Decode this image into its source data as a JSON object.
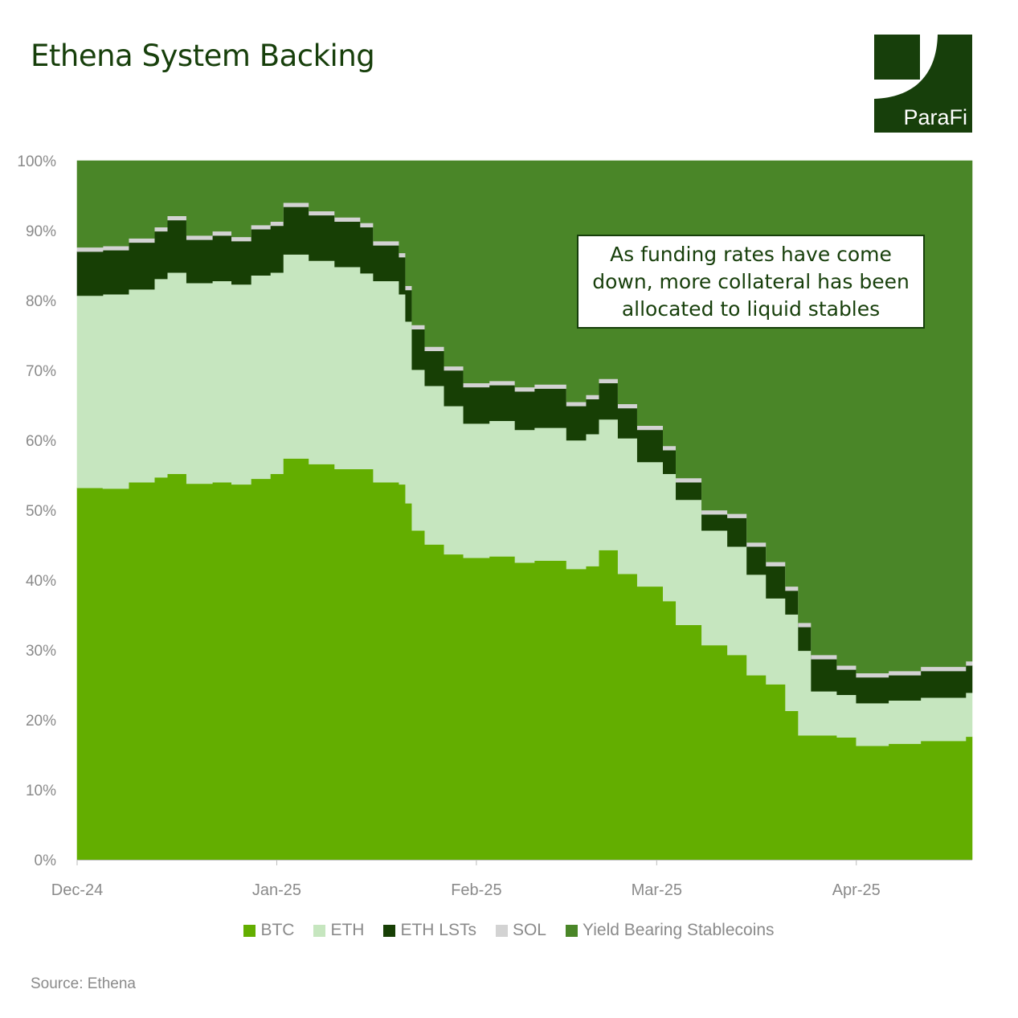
{
  "title": "Ethena System Backing",
  "source": "Source: Ethena",
  "logo_text": "ParaFi",
  "annotation": "As funding rates have come down, more collateral has been allocated to liquid stables",
  "colors": {
    "BTC": "#63ae00",
    "ETH": "#c6e6bf",
    "ETH LSTs": "#173f05",
    "SOL": "#d3d3d3",
    "Yield Bearing Stablecoins": "#4a8628",
    "title": "#173f0b"
  },
  "chart_data": {
    "type": "area",
    "stacked": true,
    "percent": true,
    "step": true,
    "title": "Ethena System Backing",
    "xlabel": "",
    "ylabel": "",
    "ylim": [
      0,
      100
    ],
    "xlim": [
      "2024-12-01",
      "2025-04-19"
    ],
    "y_ticks": [
      "0%",
      "10%",
      "20%",
      "30%",
      "40%",
      "50%",
      "60%",
      "70%",
      "80%",
      "90%",
      "100%"
    ],
    "x_ticks": [
      {
        "date": "2024-12-01",
        "label": "Dec-24"
      },
      {
        "date": "2025-01-01",
        "label": "Jan-25"
      },
      {
        "date": "2025-02-01",
        "label": "Feb-25"
      },
      {
        "date": "2025-03-01",
        "label": "Mar-25"
      },
      {
        "date": "2025-04-01",
        "label": "Apr-25"
      }
    ],
    "grid": false,
    "legend_position": "bottom",
    "x": [
      "2024-12-01",
      "2024-12-05",
      "2024-12-09",
      "2024-12-13",
      "2024-12-15",
      "2024-12-18",
      "2024-12-22",
      "2024-12-25",
      "2024-12-28",
      "2024-12-31",
      "2025-01-02",
      "2025-01-06",
      "2025-01-10",
      "2025-01-14",
      "2025-01-16",
      "2025-01-20",
      "2025-01-21",
      "2025-01-22",
      "2025-01-24",
      "2025-01-27",
      "2025-01-30",
      "2025-02-03",
      "2025-02-07",
      "2025-02-10",
      "2025-02-15",
      "2025-02-18",
      "2025-02-20",
      "2025-02-23",
      "2025-02-26",
      "2025-03-02",
      "2025-03-04",
      "2025-03-08",
      "2025-03-12",
      "2025-03-15",
      "2025-03-18",
      "2025-03-21",
      "2025-03-23",
      "2025-03-25",
      "2025-03-29",
      "2025-04-01",
      "2025-04-06",
      "2025-04-11",
      "2025-04-18"
    ],
    "series": [
      {
        "name": "BTC",
        "values": [
          53.2,
          53.1,
          54.0,
          54.7,
          55.2,
          53.8,
          54.0,
          53.7,
          54.5,
          55.2,
          57.4,
          56.6,
          55.9,
          55.9,
          54.0,
          53.7,
          51.0,
          47.1,
          45.1,
          43.7,
          43.2,
          43.4,
          42.5,
          42.8,
          41.6,
          42.0,
          44.3,
          40.9,
          39.1,
          37.0,
          33.6,
          30.7,
          29.3,
          26.4,
          25.1,
          21.3,
          17.8,
          17.8,
          17.5,
          16.3,
          16.6,
          17.0,
          17.6
        ]
      },
      {
        "name": "ETH",
        "values": [
          27.5,
          27.8,
          27.6,
          28.4,
          28.8,
          28.7,
          28.8,
          28.6,
          29.1,
          28.8,
          29.2,
          29.1,
          28.9,
          28.0,
          28.8,
          27.2,
          26.0,
          23.0,
          22.7,
          21.2,
          19.2,
          19.4,
          19.0,
          19.0,
          18.4,
          18.9,
          18.7,
          19.4,
          17.8,
          18.2,
          17.9,
          16.4,
          15.5,
          14.4,
          12.3,
          13.8,
          12.1,
          6.3,
          6.1,
          6.1,
          6.2,
          6.2,
          6.3
        ]
      },
      {
        "name": "ETH LSTs",
        "values": [
          6.3,
          6.3,
          6.7,
          6.8,
          7.5,
          6.2,
          6.5,
          6.2,
          6.6,
          6.7,
          6.8,
          6.5,
          6.5,
          6.6,
          5.1,
          5.3,
          4.5,
          5.8,
          5.0,
          5.1,
          5.2,
          5.1,
          5.5,
          5.6,
          4.9,
          5.0,
          5.2,
          4.3,
          4.6,
          3.4,
          2.5,
          2.3,
          4.1,
          4.0,
          4.6,
          3.4,
          3.4,
          4.6,
          3.6,
          3.7,
          3.6,
          3.8,
          3.9
        ]
      },
      {
        "name": "SOL",
        "values": [
          0.6,
          0.6,
          0.6,
          0.6,
          0.6,
          0.6,
          0.6,
          0.6,
          0.6,
          0.6,
          0.6,
          0.6,
          0.6,
          0.6,
          0.6,
          0.6,
          0.6,
          0.6,
          0.6,
          0.6,
          0.6,
          0.6,
          0.6,
          0.6,
          0.6,
          0.6,
          0.6,
          0.6,
          0.6,
          0.6,
          0.6,
          0.6,
          0.6,
          0.6,
          0.6,
          0.6,
          0.6,
          0.6,
          0.6,
          0.6,
          0.6,
          0.6,
          0.6
        ]
      },
      {
        "name": "Yield Bearing Stablecoins",
        "values": [
          12.4,
          12.2,
          11.1,
          9.5,
          7.9,
          10.7,
          10.1,
          10.9,
          9.2,
          8.7,
          6.0,
          7.2,
          8.1,
          8.9,
          11.5,
          13.2,
          17.9,
          23.5,
          26.6,
          29.4,
          31.8,
          31.5,
          32.4,
          32.0,
          34.5,
          33.5,
          31.2,
          34.8,
          37.9,
          40.8,
          45.4,
          50.0,
          50.5,
          54.6,
          57.4,
          60.9,
          66.1,
          70.7,
          72.2,
          73.3,
          73.0,
          72.4,
          71.6
        ]
      }
    ]
  }
}
